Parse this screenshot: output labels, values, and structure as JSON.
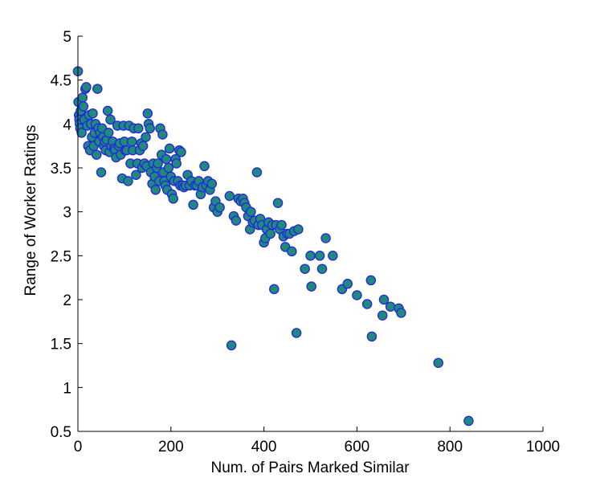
{
  "chart_data": {
    "type": "scatter",
    "title": "",
    "xlabel": "Num. of Pairs Marked Similar",
    "ylabel": "Range of Worker Ratings",
    "xlim": [
      0,
      1000
    ],
    "ylim": [
      0.5,
      5
    ],
    "xticks": [
      "0",
      "200",
      "400",
      "600",
      "800",
      "1000"
    ],
    "yticks": [
      "0.5",
      "1",
      "1.5",
      "2",
      "2.5",
      "3",
      "3.5",
      "4",
      "4.5",
      "5"
    ],
    "grid": false,
    "colors": {
      "marker_fill": "#1f8a7a",
      "marker_edge": "#2424e6"
    },
    "series": [
      {
        "points": [
          [
            0,
            4.6
          ],
          [
            1,
            4.25
          ],
          [
            2,
            4.1
          ],
          [
            3,
            4.05
          ],
          [
            4,
            4.0
          ],
          [
            5,
            3.95
          ],
          [
            6,
            4.15
          ],
          [
            8,
            3.9
          ],
          [
            10,
            4.3
          ],
          [
            12,
            4.2
          ],
          [
            14,
            4.05
          ],
          [
            16,
            4.4
          ],
          [
            18,
            4.42
          ],
          [
            20,
            3.98
          ],
          [
            22,
            3.75
          ],
          [
            24,
            4.1
          ],
          [
            26,
            3.7
          ],
          [
            28,
            4.0
          ],
          [
            30,
            3.85
          ],
          [
            32,
            4.12
          ],
          [
            34,
            3.75
          ],
          [
            36,
            3.9
          ],
          [
            38,
            4.0
          ],
          [
            40,
            3.65
          ],
          [
            42,
            4.4
          ],
          [
            44,
            3.95
          ],
          [
            46,
            3.8
          ],
          [
            48,
            3.9
          ],
          [
            50,
            3.45
          ],
          [
            52,
            3.95
          ],
          [
            54,
            3.85
          ],
          [
            56,
            3.75
          ],
          [
            58,
            3.8
          ],
          [
            60,
            3.7
          ],
          [
            62,
            3.82
          ],
          [
            64,
            4.15
          ],
          [
            66,
            3.9
          ],
          [
            68,
            3.68
          ],
          [
            70,
            4.05
          ],
          [
            72,
            3.75
          ],
          [
            75,
            3.8
          ],
          [
            78,
            3.72
          ],
          [
            80,
            3.7
          ],
          [
            82,
            3.62
          ],
          [
            85,
            3.98
          ],
          [
            88,
            3.75
          ],
          [
            90,
            3.78
          ],
          [
            92,
            3.65
          ],
          [
            95,
            3.38
          ],
          [
            98,
            3.98
          ],
          [
            100,
            3.8
          ],
          [
            102,
            3.7
          ],
          [
            105,
            3.7
          ],
          [
            108,
            3.35
          ],
          [
            110,
            3.98
          ],
          [
            113,
            3.55
          ],
          [
            116,
            3.8
          ],
          [
            118,
            3.7
          ],
          [
            120,
            3.95
          ],
          [
            125,
            3.42
          ],
          [
            128,
            3.55
          ],
          [
            130,
            3.95
          ],
          [
            133,
            3.7
          ],
          [
            136,
            3.78
          ],
          [
            138,
            3.5
          ],
          [
            140,
            3.75
          ],
          [
            143,
            3.55
          ],
          [
            146,
            3.85
          ],
          [
            148,
            3.52
          ],
          [
            150,
            4.12
          ],
          [
            152,
            4.0
          ],
          [
            155,
            3.95
          ],
          [
            157,
            3.45
          ],
          [
            160,
            3.32
          ],
          [
            162,
            3.55
          ],
          [
            165,
            3.4
          ],
          [
            167,
            3.25
          ],
          [
            170,
            3.5
          ],
          [
            172,
            3.55
          ],
          [
            175,
            3.35
          ],
          [
            177,
            3.95
          ],
          [
            180,
            3.65
          ],
          [
            182,
            3.88
          ],
          [
            184,
            3.45
          ],
          [
            186,
            3.35
          ],
          [
            188,
            3.3
          ],
          [
            190,
            3.6
          ],
          [
            192,
            3.25
          ],
          [
            195,
            3.5
          ],
          [
            197,
            3.72
          ],
          [
            200,
            3.4
          ],
          [
            202,
            3.2
          ],
          [
            205,
            3.15
          ],
          [
            207,
            3.35
          ],
          [
            210,
            3.6
          ],
          [
            212,
            3.55
          ],
          [
            215,
            3.35
          ],
          [
            218,
            3.7
          ],
          [
            220,
            3.3
          ],
          [
            222,
            3.68
          ],
          [
            225,
            3.3
          ],
          [
            228,
            3.28
          ],
          [
            232,
            3.3
          ],
          [
            236,
            3.42
          ],
          [
            240,
            3.3
          ],
          [
            244,
            3.35
          ],
          [
            248,
            3.08
          ],
          [
            252,
            3.3
          ],
          [
            256,
            3.3
          ],
          [
            260,
            3.35
          ],
          [
            264,
            3.2
          ],
          [
            268,
            3.28
          ],
          [
            272,
            3.52
          ],
          [
            276,
            3.3
          ],
          [
            280,
            3.35
          ],
          [
            284,
            3.25
          ],
          [
            288,
            3.32
          ],
          [
            292,
            3.05
          ],
          [
            296,
            3.12
          ],
          [
            300,
            3.0
          ],
          [
            305,
            3.05
          ],
          [
            326,
            3.18
          ],
          [
            330,
            1.48
          ],
          [
            335,
            2.95
          ],
          [
            340,
            2.9
          ],
          [
            345,
            3.15
          ],
          [
            350,
            3.12
          ],
          [
            355,
            3.15
          ],
          [
            358,
            3.1
          ],
          [
            362,
            3.05
          ],
          [
            366,
            2.95
          ],
          [
            370,
            2.8
          ],
          [
            372,
            3.0
          ],
          [
            376,
            2.88
          ],
          [
            380,
            2.9
          ],
          [
            385,
            3.45
          ],
          [
            388,
            2.85
          ],
          [
            392,
            2.92
          ],
          [
            396,
            2.85
          ],
          [
            400,
            2.65
          ],
          [
            403,
            2.7
          ],
          [
            406,
            2.8
          ],
          [
            410,
            2.88
          ],
          [
            414,
            2.75
          ],
          [
            418,
            2.85
          ],
          [
            422,
            2.12
          ],
          [
            426,
            2.85
          ],
          [
            430,
            3.1
          ],
          [
            434,
            2.8
          ],
          [
            438,
            2.85
          ],
          [
            442,
            2.72
          ],
          [
            446,
            2.6
          ],
          [
            450,
            2.75
          ],
          [
            455,
            2.75
          ],
          [
            460,
            2.55
          ],
          [
            465,
            2.78
          ],
          [
            470,
            1.62
          ],
          [
            474,
            2.8
          ],
          [
            488,
            2.35
          ],
          [
            500,
            2.5
          ],
          [
            502,
            2.15
          ],
          [
            520,
            2.5
          ],
          [
            525,
            2.35
          ],
          [
            533,
            2.7
          ],
          [
            548,
            2.5
          ],
          [
            568,
            2.12
          ],
          [
            580,
            2.18
          ],
          [
            600,
            2.05
          ],
          [
            622,
            1.95
          ],
          [
            630,
            2.22
          ],
          [
            632,
            1.58
          ],
          [
            655,
            1.82
          ],
          [
            658,
            2.0
          ],
          [
            672,
            1.92
          ],
          [
            690,
            1.9
          ],
          [
            695,
            1.85
          ],
          [
            775,
            1.28
          ],
          [
            840,
            0.62
          ]
        ]
      }
    ]
  }
}
